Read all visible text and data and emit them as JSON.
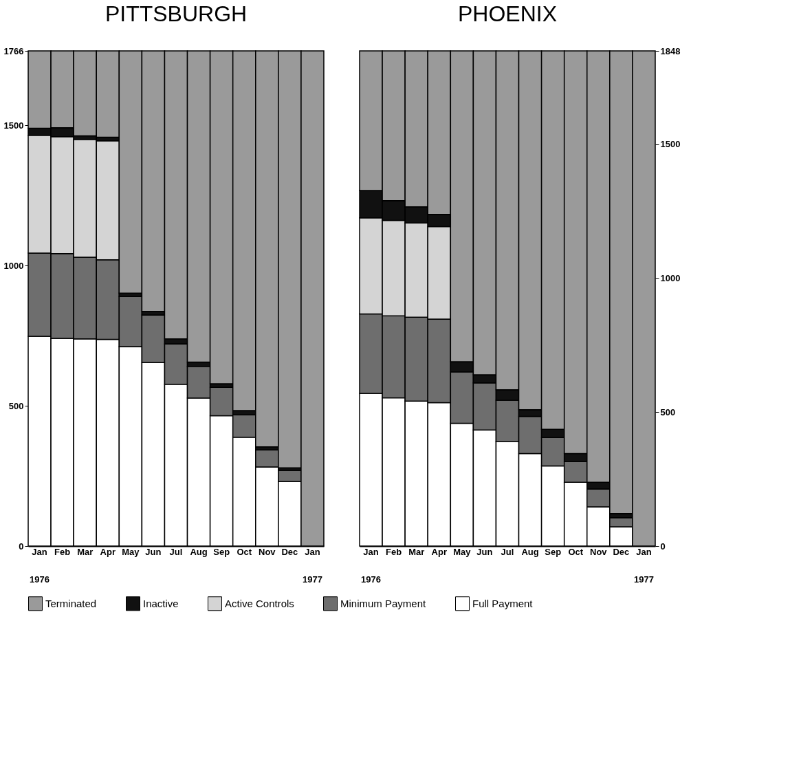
{
  "chart_data": [
    {
      "type": "bar",
      "title": "PITTSBURGH",
      "stacked": true,
      "legend": "bottom",
      "categories": [
        "Jan\n1976",
        "Feb",
        "Mar",
        "Apr",
        "May",
        "Jun",
        "Jul",
        "Aug",
        "Sep",
        "Oct",
        "Nov",
        "Dec",
        "Jan\n1977"
      ],
      "ylim": [
        0,
        1766
      ],
      "yticks": [
        0,
        500,
        1000,
        1500,
        1766
      ],
      "series": [
        {
          "name": "Full Payment",
          "color": "#ffffff",
          "values": [
            748,
            741,
            739,
            737,
            711,
            655,
            577,
            528,
            465,
            388,
            282,
            230,
            0
          ]
        },
        {
          "name": "Minimum Payment",
          "color": "#6e6e6e",
          "values": [
            297,
            302,
            291,
            284,
            179,
            169,
            144,
            113,
            101,
            80,
            61,
            39,
            0
          ]
        },
        {
          "name": "Active Controls",
          "color": "#d4d4d4",
          "values": [
            420,
            417,
            420,
            424,
            0,
            0,
            0,
            0,
            0,
            0,
            0,
            0,
            0
          ]
        },
        {
          "name": "Inactive",
          "color": "#111111",
          "values": [
            25,
            32,
            13,
            13,
            12,
            13,
            18,
            15,
            13,
            15,
            11,
            10,
            0
          ]
        },
        {
          "name": "Terminated",
          "color": "#9a9a9a",
          "values": [
            276,
            274,
            303,
            308,
            864,
            929,
            1027,
            1110,
            1187,
            1283,
            1412,
            1487,
            1766
          ]
        }
      ]
    },
    {
      "type": "bar",
      "title": "PHOENIX",
      "stacked": true,
      "legend": "bottom",
      "categories": [
        "Jan\n1976",
        "Feb",
        "Mar",
        "Apr",
        "May",
        "Jun",
        "Jul",
        "Aug",
        "Sep",
        "Oct",
        "Nov",
        "Dec",
        "Jan\n1977"
      ],
      "ylim": [
        0,
        1848
      ],
      "yticks": [
        0,
        500,
        1000,
        1500,
        1848
      ],
      "series": [
        {
          "name": "Full Payment",
          "color": "#ffffff",
          "values": [
            570,
            553,
            541,
            535,
            458,
            433,
            391,
            345,
            299,
            238,
            146,
            72,
            0
          ]
        },
        {
          "name": "Minimum Payment",
          "color": "#6e6e6e",
          "values": [
            296,
            306,
            313,
            312,
            192,
            176,
            153,
            139,
            106,
            77,
            67,
            34,
            0
          ]
        },
        {
          "name": "Active Controls",
          "color": "#d4d4d4",
          "values": [
            359,
            356,
            352,
            345,
            0,
            0,
            0,
            0,
            0,
            0,
            0,
            0,
            0
          ]
        },
        {
          "name": "Inactive",
          "color": "#111111",
          "values": [
            102,
            74,
            60,
            46,
            38,
            30,
            39,
            25,
            31,
            30,
            25,
            15,
            0
          ]
        },
        {
          "name": "Terminated",
          "color": "#9a9a9a",
          "values": [
            521,
            559,
            582,
            610,
            1160,
            1209,
            1265,
            1339,
            1412,
            1503,
            1610,
            1727,
            1848
          ]
        }
      ]
    }
  ]
}
